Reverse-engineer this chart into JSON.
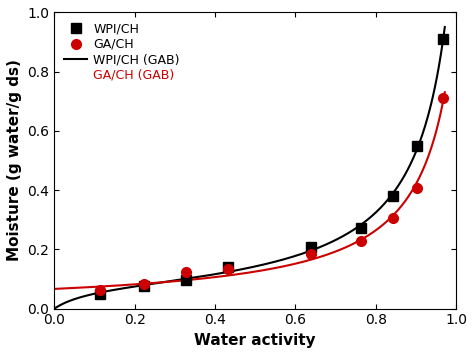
{
  "wpi_x": [
    0.113,
    0.224,
    0.328,
    0.432,
    0.638,
    0.763,
    0.843,
    0.903,
    0.968
  ],
  "wpi_y": [
    0.051,
    0.075,
    0.097,
    0.141,
    0.207,
    0.271,
    0.379,
    0.548,
    0.91
  ],
  "ga_x": [
    0.113,
    0.224,
    0.328,
    0.432,
    0.638,
    0.763,
    0.843,
    0.903,
    0.968
  ],
  "ga_y": [
    0.062,
    0.083,
    0.124,
    0.135,
    0.183,
    0.228,
    0.305,
    0.407,
    0.71
  ],
  "wpi_color": "#000000",
  "ga_color": "#cc0000",
  "xlabel": "Water activity",
  "ylabel": "Moisture (g water/g ds)",
  "xlim": [
    0.0,
    1.0
  ],
  "ylim": [
    0.0,
    1.0
  ],
  "xticks": [
    0.0,
    0.2,
    0.4,
    0.6,
    0.8,
    1.0
  ],
  "yticks": [
    0.0,
    0.2,
    0.4,
    0.6,
    0.8,
    1.0
  ],
  "legend_labels": [
    "WPI/CH",
    "GA/CH",
    "WPI/CH (GAB)",
    "GA/CH (GAB)"
  ],
  "marker_size": 7,
  "line_width": 1.5,
  "tick_fontsize": 10,
  "label_fontsize": 11
}
